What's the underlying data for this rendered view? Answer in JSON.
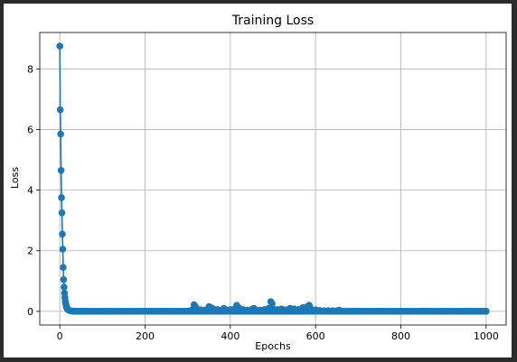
{
  "chart_data": {
    "type": "line",
    "title": "Training Loss",
    "xlabel": "Epochs",
    "ylabel": "Loss",
    "xlim": [
      -47,
      1047
    ],
    "ylim": [
      -0.45,
      9.2
    ],
    "xticks": [
      0,
      200,
      400,
      600,
      800,
      1000
    ],
    "yticks": [
      0,
      2,
      4,
      6,
      8
    ],
    "grid": true,
    "legend": "none",
    "color": "#1f77b4",
    "marker": "circle",
    "series": [
      {
        "x": [
          0,
          1,
          2,
          3,
          4,
          5,
          6,
          7,
          8,
          9,
          10,
          11,
          12,
          13,
          14,
          15,
          16,
          17,
          18,
          20,
          22,
          25,
          30,
          35,
          40,
          50,
          100,
          150,
          200,
          250,
          300,
          310,
          315,
          318,
          322,
          330,
          340,
          350,
          355,
          360,
          370,
          380,
          385,
          390,
          400,
          410,
          415,
          420,
          430,
          440,
          450,
          455,
          460,
          470,
          480,
          490,
          495,
          498,
          500,
          510,
          520,
          530,
          540,
          545,
          550,
          560,
          570,
          575,
          580,
          585,
          588,
          590,
          600,
          610,
          620,
          630,
          640,
          650,
          655,
          660,
          700,
          750,
          800,
          850,
          900,
          950,
          1000
        ],
        "y": [
          8.75,
          6.65,
          5.85,
          4.65,
          3.75,
          3.25,
          2.55,
          2.05,
          1.45,
          1.05,
          0.8,
          0.6,
          0.45,
          0.33,
          0.25,
          0.18,
          0.13,
          0.1,
          0.07,
          0.05,
          0.03,
          0.02,
          0.01,
          0.005,
          0.003,
          0.002,
          0.002,
          0.002,
          0.002,
          0.003,
          0.005,
          0.05,
          0.22,
          0.15,
          0.08,
          0.05,
          0.04,
          0.16,
          0.12,
          0.08,
          0.06,
          0.05,
          0.1,
          0.05,
          0.06,
          0.08,
          0.2,
          0.12,
          0.06,
          0.04,
          0.06,
          0.1,
          0.05,
          0.04,
          0.06,
          0.1,
          0.32,
          0.25,
          0.08,
          0.06,
          0.08,
          0.05,
          0.1,
          0.05,
          0.08,
          0.06,
          0.12,
          0.08,
          0.15,
          0.2,
          0.1,
          0.06,
          0.05,
          0.03,
          0.02,
          0.02,
          0.02,
          0.02,
          0.04,
          0.01,
          0.005,
          0.003,
          0.002,
          0.002,
          0.002,
          0.002,
          0.002
        ]
      }
    ]
  }
}
